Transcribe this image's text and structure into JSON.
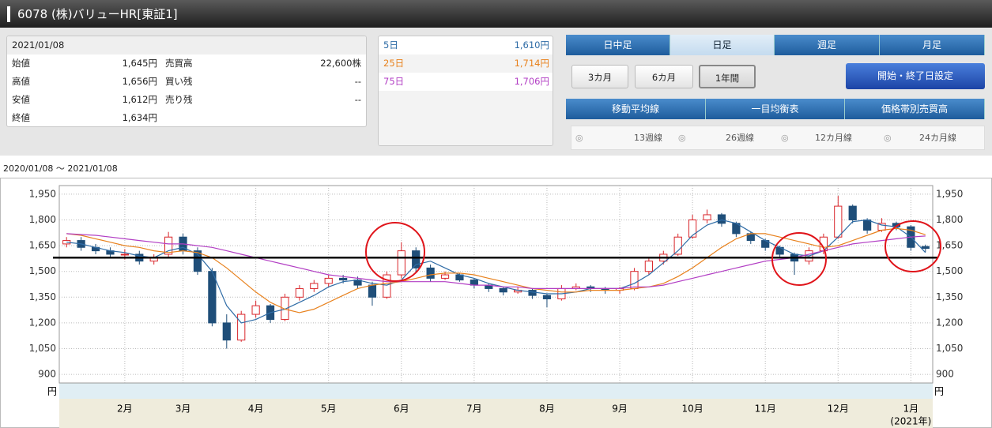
{
  "header": {
    "title": "6078 (株)バリューHR[東証1]"
  },
  "quote": {
    "date": "2021/01/08",
    "rows": [
      [
        "始値",
        "1,645円",
        "売買高",
        "22,600株"
      ],
      [
        "高値",
        "1,656円",
        "買い残",
        "--"
      ],
      [
        "安値",
        "1,612円",
        "売り残",
        "--"
      ],
      [
        "終値",
        "1,634円"
      ]
    ]
  },
  "tabs": [
    "日中足",
    "日足",
    "週足",
    "月足"
  ],
  "periods": [
    "3カ月",
    "6カ月",
    "1年間"
  ],
  "date_button": "開始・終了日設定",
  "indicator_tabs": [
    "移動平均線",
    "一目均衡表",
    "価格帯別売買高"
  ],
  "line_options": [
    "13週線",
    "26週線",
    "12カ月線",
    "24カ月線"
  ],
  "range": "2020/01/08 ～ 2021/01/08",
  "chart_data": {
    "type": "candlestick",
    "unit": "円",
    "year_note": "(2021年)",
    "ylim": [
      850,
      2000
    ],
    "yticks": [
      {
        "value": 900,
        "label": "900"
      },
      {
        "value": 1050,
        "label": "1,050"
      },
      {
        "value": 1200,
        "label": "1,200"
      },
      {
        "value": 1350,
        "label": "1,350"
      },
      {
        "value": 1500,
        "label": "1,500"
      },
      {
        "value": 1650,
        "label": "1,650"
      },
      {
        "value": 1800,
        "label": "1,800"
      },
      {
        "value": 1950,
        "label": "1,950"
      }
    ],
    "grid": true,
    "categories": [
      null,
      null,
      null,
      null,
      "2月",
      null,
      null,
      null,
      "3月",
      null,
      null,
      null,
      null,
      "4月",
      null,
      null,
      null,
      null,
      "5月",
      null,
      null,
      null,
      null,
      "6月",
      null,
      null,
      null,
      null,
      "7月",
      null,
      null,
      null,
      null,
      "8月",
      null,
      null,
      null,
      null,
      "9月",
      null,
      null,
      null,
      null,
      "10月",
      null,
      null,
      null,
      null,
      "11月",
      null,
      null,
      null,
      null,
      "12月",
      null,
      null,
      null,
      null,
      "1月",
      null
    ],
    "candles": {
      "up_color": "#d9262b",
      "down_color": "#1f4e79",
      "open": [
        1660,
        1680,
        1640,
        1620,
        1600,
        1600,
        1560,
        1600,
        1700,
        1620,
        1500,
        1200,
        1100,
        1250,
        1300,
        1220,
        1350,
        1400,
        1430,
        1460,
        1450,
        1420,
        1350,
        1480,
        1620,
        1520,
        1460,
        1480,
        1450,
        1420,
        1400,
        1380,
        1390,
        1360,
        1340,
        1400,
        1410,
        1400,
        1390,
        1400,
        1500,
        1560,
        1600,
        1700,
        1800,
        1830,
        1780,
        1720,
        1680,
        1640,
        1600,
        1560,
        1620,
        1700,
        1880,
        1800,
        1740,
        1780,
        1760,
        1645
      ],
      "high": [
        1700,
        1700,
        1660,
        1640,
        1630,
        1620,
        1600,
        1730,
        1720,
        1640,
        1520,
        1250,
        1270,
        1330,
        1310,
        1370,
        1420,
        1450,
        1480,
        1480,
        1470,
        1440,
        1500,
        1670,
        1640,
        1540,
        1500,
        1490,
        1460,
        1430,
        1410,
        1410,
        1400,
        1370,
        1420,
        1430,
        1420,
        1410,
        1410,
        1520,
        1580,
        1620,
        1720,
        1830,
        1860,
        1840,
        1790,
        1730,
        1690,
        1650,
        1610,
        1640,
        1720,
        1940,
        1890,
        1810,
        1810,
        1790,
        1770,
        1656
      ],
      "low": [
        1640,
        1620,
        1600,
        1580,
        1570,
        1540,
        1540,
        1580,
        1600,
        1480,
        1180,
        1050,
        1090,
        1230,
        1200,
        1210,
        1330,
        1380,
        1410,
        1430,
        1400,
        1300,
        1340,
        1460,
        1500,
        1440,
        1450,
        1440,
        1400,
        1380,
        1360,
        1370,
        1340,
        1290,
        1330,
        1390,
        1380,
        1370,
        1370,
        1390,
        1480,
        1540,
        1590,
        1690,
        1780,
        1760,
        1700,
        1660,
        1620,
        1580,
        1480,
        1540,
        1600,
        1690,
        1780,
        1720,
        1730,
        1740,
        1620,
        1612
      ],
      "close": [
        1680,
        1640,
        1620,
        1600,
        1600,
        1560,
        1580,
        1700,
        1620,
        1500,
        1200,
        1100,
        1250,
        1300,
        1220,
        1350,
        1400,
        1430,
        1460,
        1450,
        1420,
        1350,
        1480,
        1620,
        1520,
        1460,
        1480,
        1450,
        1420,
        1400,
        1380,
        1390,
        1360,
        1340,
        1400,
        1410,
        1400,
        1390,
        1400,
        1500,
        1560,
        1600,
        1700,
        1800,
        1830,
        1780,
        1720,
        1680,
        1640,
        1600,
        1560,
        1620,
        1700,
        1880,
        1800,
        1740,
        1780,
        1760,
        1640,
        1634
      ]
    },
    "series": [
      {
        "name": "5日",
        "color": "#2f6ca6",
        "last_label": "1,610円",
        "values": [
          1670,
          1660,
          1640,
          1620,
          1610,
          1590,
          1580,
          1620,
          1640,
          1600,
          1500,
          1300,
          1200,
          1220,
          1260,
          1280,
          1320,
          1360,
          1410,
          1440,
          1450,
          1430,
          1420,
          1450,
          1540,
          1560,
          1520,
          1480,
          1460,
          1430,
          1410,
          1390,
          1380,
          1370,
          1370,
          1380,
          1400,
          1400,
          1400,
          1430,
          1480,
          1550,
          1620,
          1710,
          1770,
          1800,
          1780,
          1730,
          1680,
          1640,
          1600,
          1590,
          1620,
          1700,
          1790,
          1800,
          1770,
          1760,
          1700,
          1610
        ]
      },
      {
        "name": "25日",
        "color": "#e8821e",
        "last_label": "1,714円",
        "values": [
          1720,
          1710,
          1690,
          1670,
          1650,
          1640,
          1620,
          1610,
          1620,
          1610,
          1580,
          1520,
          1450,
          1380,
          1320,
          1280,
          1260,
          1280,
          1320,
          1360,
          1400,
          1420,
          1430,
          1440,
          1460,
          1480,
          1490,
          1490,
          1480,
          1460,
          1440,
          1420,
          1400,
          1390,
          1380,
          1380,
          1390,
          1390,
          1390,
          1400,
          1410,
          1430,
          1470,
          1520,
          1580,
          1640,
          1690,
          1720,
          1720,
          1700,
          1680,
          1660,
          1640,
          1650,
          1680,
          1710,
          1740,
          1750,
          1740,
          1714
        ]
      },
      {
        "name": "75日",
        "color": "#b23ec4",
        "last_label": "1,706円",
        "values": [
          1720,
          1715,
          1710,
          1700,
          1690,
          1680,
          1670,
          1660,
          1660,
          1650,
          1640,
          1620,
          1600,
          1580,
          1560,
          1540,
          1520,
          1500,
          1480,
          1470,
          1460,
          1450,
          1440,
          1440,
          1440,
          1440,
          1440,
          1430,
          1420,
          1420,
          1410,
          1410,
          1400,
          1400,
          1400,
          1400,
          1400,
          1400,
          1400,
          1410,
          1410,
          1420,
          1440,
          1460,
          1480,
          1500,
          1520,
          1540,
          1560,
          1570,
          1580,
          1600,
          1620,
          1640,
          1660,
          1670,
          1680,
          1690,
          1700,
          1706
        ]
      }
    ],
    "support_level": 1580
  }
}
